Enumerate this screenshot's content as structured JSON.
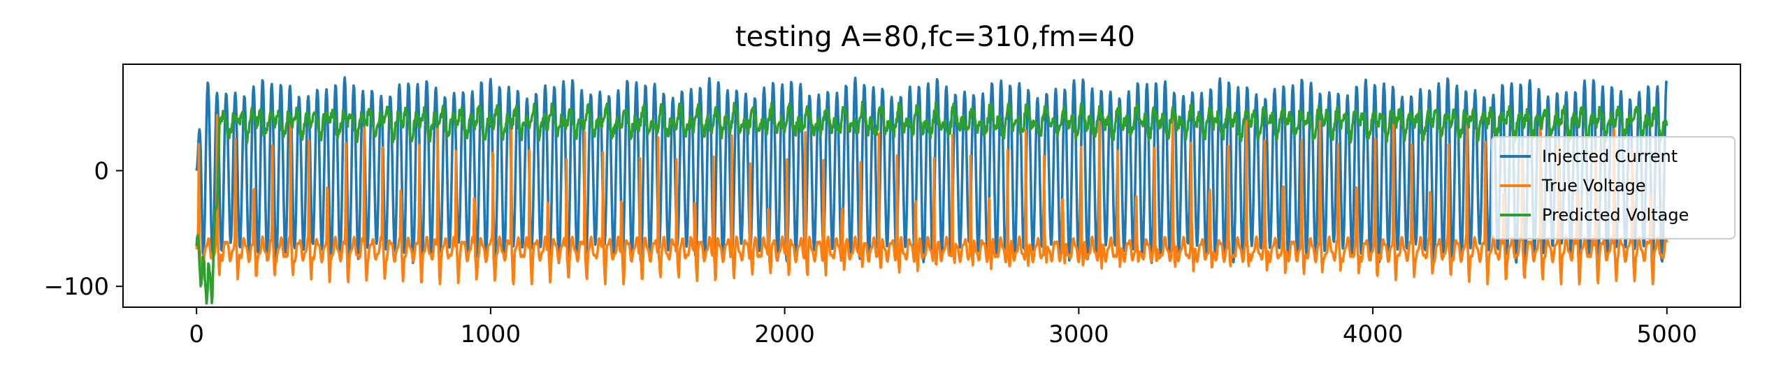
{
  "chart_data": {
    "type": "line",
    "title": "testing A=80,fc=310,fm=40",
    "xlabel": "",
    "ylabel": "",
    "xlim": [
      -250,
      5250
    ],
    "ylim": [
      -118,
      92
    ],
    "xticks": [
      0,
      1000,
      2000,
      3000,
      4000,
      5000
    ],
    "xtick_labels": [
      "0",
      "1000",
      "2000",
      "3000",
      "4000",
      "5000"
    ],
    "yticks": [
      0,
      -100
    ],
    "ytick_labels": [
      "0",
      "−100"
    ],
    "grid": false,
    "legend_placement": "right",
    "series": [
      {
        "name": "Injected Current",
        "color": "#1f77b4",
        "description_params": {
          "amplitude": 80,
          "period_samples": 31.0,
          "envelope_period_samples": 250,
          "offset": 0
        },
        "x_range": [
          0,
          5000
        ],
        "y_range": [
          -78,
          78
        ]
      },
      {
        "name": "True Voltage",
        "color": "#ff7f0e",
        "x_range": [
          0,
          5000
        ],
        "y_range": [
          -98,
          40
        ],
        "resting_level": -68,
        "spike_peak": 38,
        "spike_period_samples": 62.5
      },
      {
        "name": "Predicted Voltage",
        "color": "#2ca02c",
        "x_range": [
          0,
          5000
        ],
        "y_range": [
          -108,
          60
        ],
        "steady_level": 42,
        "initial_dip": -108
      }
    ]
  }
}
